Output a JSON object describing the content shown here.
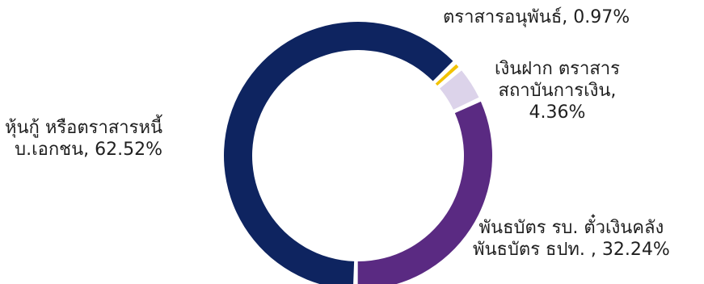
{
  "chart_data": {
    "type": "pie",
    "variant": "donut",
    "title": "",
    "legend": "none",
    "slices": [
      {
        "label_lines": [
          "ตราสารอนุพันธ์, 0.97%"
        ],
        "value": 0.97,
        "color": "#F2C200"
      },
      {
        "label_lines": [
          "เงินฝาก ตราสาร",
          "สถาบันการเงิน,",
          "4.36%"
        ],
        "value": 4.36,
        "color": "#DCD3EA"
      },
      {
        "label_lines": [
          "พันธบัตร รบ. ตั๋วเงินคลัง",
          "พันธบัตร ธปท.   , 32.24%"
        ],
        "value": 32.24,
        "color": "#5A2A82"
      },
      {
        "label_lines": [
          "หุ้นกู้ หรือตราสารหนี้",
          "บ.เอกชน, 62.52%"
        ],
        "value": 62.52,
        "color": "#0E2460"
      }
    ]
  }
}
